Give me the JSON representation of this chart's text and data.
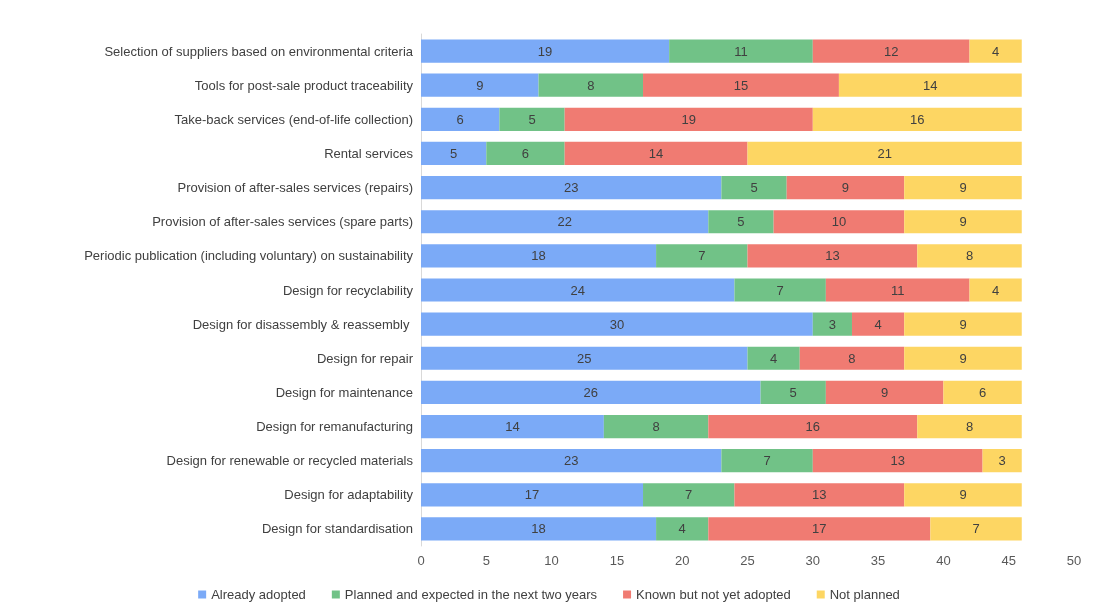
{
  "chart_data": {
    "type": "bar",
    "orientation": "horizontal",
    "stacked": true,
    "data_labels": true,
    "grid": false,
    "legend": "bottom",
    "categories": [
      "Selection of suppliers based on environmental criteria",
      "Tools for post-sale product traceability",
      "Take-back services (end-of-life collection)",
      "Rental services",
      "Provision of after-sales services (repairs)",
      "Provision of after-sales services (spare parts)",
      "Periodic publication (including voluntary) on sustainability",
      "Design for recyclability",
      "Design for disassembly & reassembly ",
      "Design for repair",
      "Design for maintenance",
      "Design for remanufacturing",
      "Design for renewable or recycled materials",
      "Design for adaptability",
      "Design for standardisation"
    ],
    "xlim": [
      0,
      50
    ],
    "xticks": [
      0,
      5,
      10,
      15,
      20,
      25,
      30,
      35,
      40,
      45,
      50
    ],
    "series": [
      {
        "name": "Already adopted",
        "color": "#7baaf7",
        "values": [
          19,
          9,
          6,
          5,
          23,
          22,
          18,
          24,
          30,
          25,
          26,
          14,
          23,
          17,
          18
        ]
      },
      {
        "name": "Planned and expected in the next two years",
        "color": "#71c287",
        "values": [
          11,
          8,
          5,
          6,
          5,
          5,
          7,
          7,
          3,
          4,
          5,
          8,
          7,
          7,
          4
        ]
      },
      {
        "name": "Known but not yet adopted",
        "color": "#f07b72",
        "values": [
          12,
          15,
          19,
          14,
          9,
          10,
          13,
          11,
          4,
          8,
          9,
          16,
          13,
          13,
          17
        ]
      },
      {
        "name": "Not planned",
        "color": "#fdd663",
        "values": [
          4,
          14,
          16,
          21,
          9,
          9,
          8,
          4,
          9,
          9,
          6,
          8,
          3,
          9,
          7
        ]
      }
    ]
  }
}
